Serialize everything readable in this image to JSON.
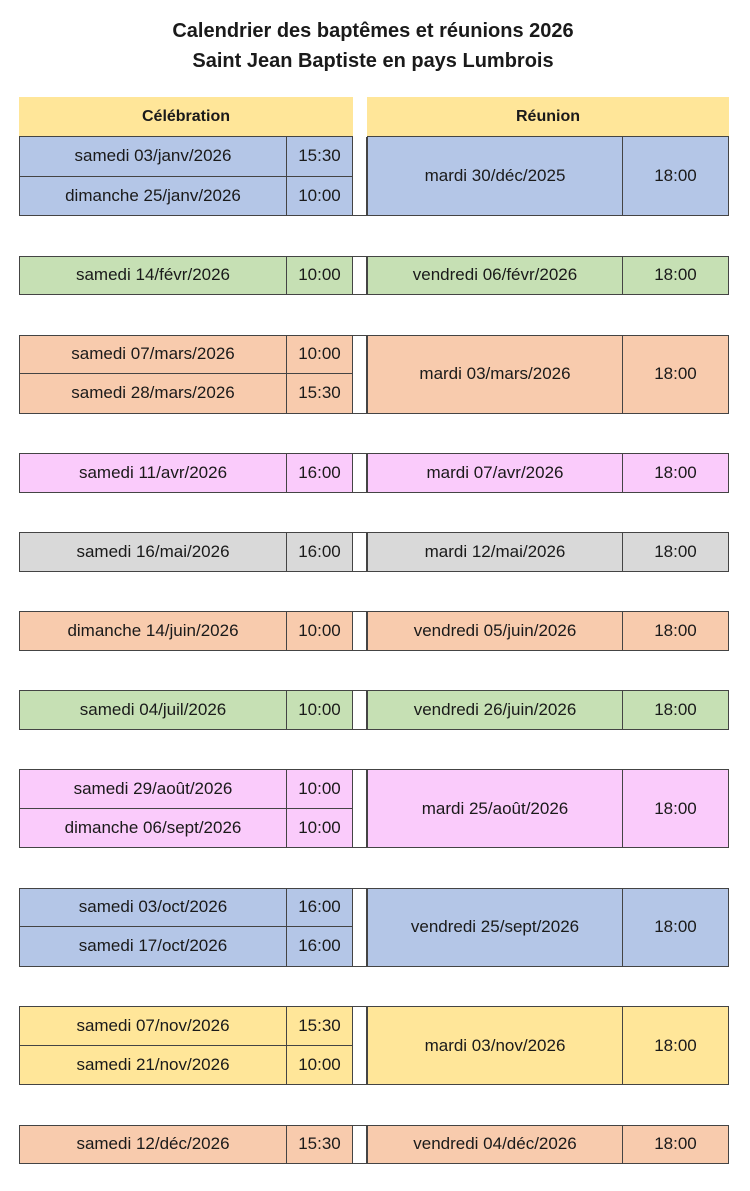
{
  "title": [
    "Calendrier des baptêmes et réunions 2026",
    "Saint Jean Baptiste en pays Lumbrois"
  ],
  "headers": {
    "celebration": "Célébration",
    "reunion": "Réunion"
  },
  "colors": {
    "header": "#ffe699",
    "blue": "#b4c6e7",
    "green": "#c6e0b4",
    "orange": "#f8cbad",
    "pink": "#facbfb",
    "grey": "#d9d9d9",
    "yellow": "#ffe699"
  },
  "groups": [
    {
      "color": "blue",
      "celebrations": [
        {
          "date": "samedi 03/janv/2026",
          "time": "15:30"
        },
        {
          "date": "dimanche 25/janv/2026",
          "time": "10:00"
        }
      ],
      "reunion": {
        "date": "mardi 30/déc/2025",
        "time": "18:00"
      }
    },
    {
      "color": "green",
      "celebrations": [
        {
          "date": "samedi 14/févr/2026",
          "time": "10:00"
        }
      ],
      "reunion": {
        "date": "vendredi 06/févr/2026",
        "time": "18:00"
      }
    },
    {
      "color": "orange",
      "celebrations": [
        {
          "date": "samedi 07/mars/2026",
          "time": "10:00"
        },
        {
          "date": "samedi 28/mars/2026",
          "time": "15:30"
        }
      ],
      "reunion": {
        "date": "mardi 03/mars/2026",
        "time": "18:00"
      }
    },
    {
      "color": "pink",
      "celebrations": [
        {
          "date": "samedi 11/avr/2026",
          "time": "16:00"
        }
      ],
      "reunion": {
        "date": "mardi 07/avr/2026",
        "time": "18:00"
      }
    },
    {
      "color": "grey",
      "celebrations": [
        {
          "date": "samedi 16/mai/2026",
          "time": "16:00"
        }
      ],
      "reunion": {
        "date": "mardi 12/mai/2026",
        "time": "18:00"
      }
    },
    {
      "color": "orange",
      "celebrations": [
        {
          "date": "dimanche 14/juin/2026",
          "time": "10:00"
        }
      ],
      "reunion": {
        "date": "vendredi 05/juin/2026",
        "time": "18:00"
      }
    },
    {
      "color": "green",
      "celebrations": [
        {
          "date": "samedi 04/juil/2026",
          "time": "10:00"
        }
      ],
      "reunion": {
        "date": "vendredi 26/juin/2026",
        "time": "18:00"
      }
    },
    {
      "color": "pink",
      "celebrations": [
        {
          "date": "samedi 29/août/2026",
          "time": "10:00"
        },
        {
          "date": "dimanche 06/sept/2026",
          "time": "10:00"
        }
      ],
      "reunion": {
        "date": "mardi 25/août/2026",
        "time": "18:00"
      }
    },
    {
      "color": "blue",
      "celebrations": [
        {
          "date": "samedi 03/oct/2026",
          "time": "16:00"
        },
        {
          "date": "samedi 17/oct/2026",
          "time": "16:00"
        }
      ],
      "reunion": {
        "date": "vendredi 25/sept/2026",
        "time": "18:00"
      }
    },
    {
      "color": "yellow",
      "celebrations": [
        {
          "date": "samedi 07/nov/2026",
          "time": "15:30"
        },
        {
          "date": "samedi 21/nov/2026",
          "time": "10:00"
        }
      ],
      "reunion": {
        "date": "mardi 03/nov/2026",
        "time": "18:00"
      }
    },
    {
      "color": "orange",
      "celebrations": [
        {
          "date": "samedi 12/déc/2026",
          "time": "15:30"
        }
      ],
      "reunion": {
        "date": "vendredi 04/déc/2026",
        "time": "18:00"
      }
    }
  ]
}
